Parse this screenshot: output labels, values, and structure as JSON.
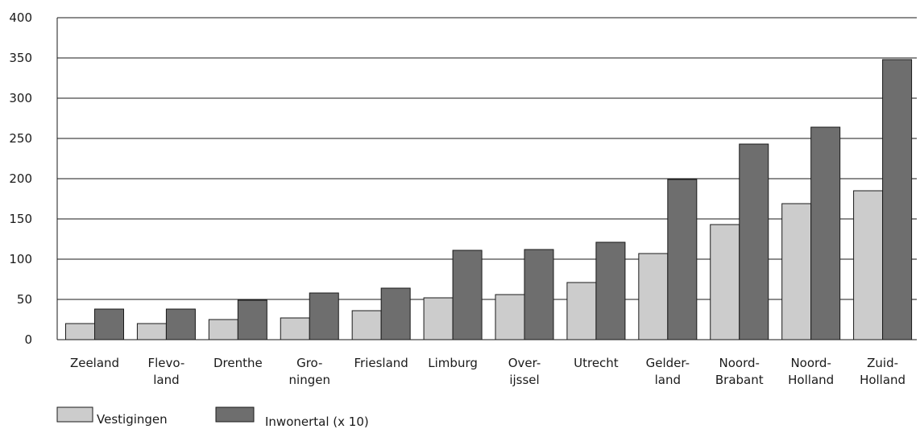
{
  "chart_data": {
    "type": "bar",
    "ylim": [
      0,
      400
    ],
    "yticks": [
      0,
      50,
      100,
      150,
      200,
      250,
      300,
      350,
      400
    ],
    "grid": true,
    "legend_position": "bottom-left",
    "categories": [
      [
        "Zeeland"
      ],
      [
        "Flevo-",
        "land"
      ],
      [
        "Drenthe"
      ],
      [
        "Gro-",
        "ningen"
      ],
      [
        "Friesland"
      ],
      [
        "Limburg"
      ],
      [
        "Over-",
        "ijssel"
      ],
      [
        "Utrecht"
      ],
      [
        "Gelder-",
        "land"
      ],
      [
        "Noord-",
        "Brabant"
      ],
      [
        "Noord-",
        "Holland"
      ],
      [
        "Zuid-",
        "Holland"
      ]
    ],
    "series": [
      {
        "name": "Vestigingen",
        "color": "#cccccc",
        "values": [
          20,
          20,
          25,
          27,
          36,
          52,
          56,
          71,
          107,
          143,
          169,
          185
        ]
      },
      {
        "name": "Inwonertal (x 10)",
        "color": "#6e6e6e",
        "values": [
          38,
          38,
          49,
          58,
          64,
          111,
          112,
          121,
          199,
          243,
          264,
          348
        ]
      }
    ]
  }
}
